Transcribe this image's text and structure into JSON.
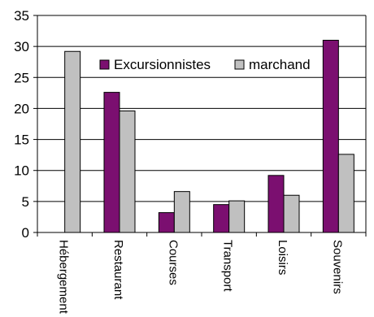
{
  "chart_data": {
    "type": "bar",
    "title": "",
    "xlabel": "",
    "ylabel": "",
    "ylim": [
      0,
      35
    ],
    "yticks": [
      0,
      5,
      10,
      15,
      20,
      25,
      30,
      35
    ],
    "grid": true,
    "legend_position": "top-center",
    "categories": [
      "Hébergement",
      "Restaurant",
      "Courses",
      "Transport",
      "Loisirs",
      "Souvenirs"
    ],
    "series": [
      {
        "name": "Excursionnistes",
        "color": "#7b0f70",
        "values": [
          0,
          22.6,
          3.2,
          4.5,
          9.2,
          31
        ]
      },
      {
        "name": "marchand",
        "color": "#c0c0c0",
        "values": [
          29.2,
          19.6,
          6.6,
          5.1,
          6,
          12.6
        ]
      }
    ]
  }
}
